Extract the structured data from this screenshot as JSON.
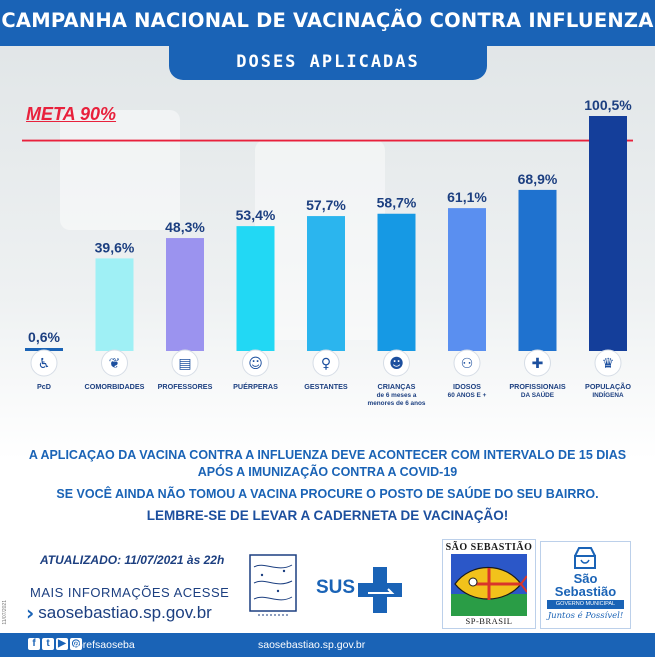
{
  "header": {
    "title": "CAMPANHA NACIONAL DE VACINAÇÃO CONTRA INFLUENZA",
    "subtitle": "DOSES APLICADAS"
  },
  "meta": {
    "label": "META 90%",
    "value": 90,
    "color": "#e8213c"
  },
  "chart_data": {
    "type": "bar",
    "categories": [
      {
        "name": "PcD",
        "lines": [
          "PcD"
        ],
        "icon": "wheelchair-icon",
        "color": "#1a63b6"
      },
      {
        "name": "COMORBIDADES",
        "lines": [
          "COMORBIDADES"
        ],
        "icon": "organs-icon",
        "color": "#9ff0f5"
      },
      {
        "name": "PROFESSORES",
        "lines": [
          "PROFESSORES"
        ],
        "icon": "books-icon",
        "color": "#9b93ef"
      },
      {
        "name": "PUÉRPERAS",
        "lines": [
          "PUÉRPERAS"
        ],
        "icon": "mother-baby-icon",
        "color": "#22d8f4"
      },
      {
        "name": "GESTANTES",
        "lines": [
          "GESTANTES"
        ],
        "icon": "pregnant-icon",
        "color": "#2bb5ee"
      },
      {
        "name": "CRIANÇAS de 6 meses a menores de 6 anos",
        "lines": [
          "CRIANÇAS",
          "de 6 meses a",
          "menores de 6 anos"
        ],
        "icon": "children-icon",
        "color": "#1699e4"
      },
      {
        "name": "IDOSOS 60 ANOS E +",
        "lines": [
          "IDOSOS",
          "60 ANOS E +"
        ],
        "icon": "elderly-icon",
        "color": "#5a8ff0"
      },
      {
        "name": "PROFISSIONAIS DA SAÚDE",
        "lines": [
          "PROFISSIONAIS",
          "DA SAÚDE"
        ],
        "icon": "doctor-icon",
        "color": "#1f72cf"
      },
      {
        "name": "POPULAÇÃO INDÍGENA",
        "lines": [
          "POPULAÇÃO",
          "INDÍGENA"
        ],
        "icon": "indigenous-icon",
        "color": "#143e9a"
      }
    ],
    "values": [
      0.6,
      39.6,
      48.3,
      53.4,
      57.7,
      58.7,
      61.1,
      68.9,
      100.5
    ],
    "value_labels": [
      "0,6%",
      "39,6%",
      "48,3%",
      "53,4%",
      "57,7%",
      "58,7%",
      "61,1%",
      "68,9%",
      "100,5%"
    ],
    "ylim": [
      0,
      100.5
    ],
    "unit": "%",
    "reference_line": {
      "label": "META 90%",
      "value": 90
    },
    "grid": false
  },
  "messages": {
    "line1a": "A APLICAÇAO  DA VACINA CONTRA A INFLUENZA DEVE ACONTECER COM INTERVALO DE 15 DIAS",
    "line1b": "APÓS A IMUNIZAÇÃO CONTRA A COVID-19",
    "line2": "SE VOCÊ AINDA NÃO TOMOU A VACINA PROCURE O POSTO DE SAÚDE DO SEU BAIRRO.",
    "line3": "LEMBRE-SE DE LEVAR A CADERNETA DE VACINAÇÃO!"
  },
  "footer": {
    "updated": "ATUALIZADO: 11/07/2021 às 22h",
    "more_info": "MAIS INFORMAÇÕES ACESSE",
    "site": "saosebastiao.sp.gov.br",
    "sus_label": "SUS",
    "social_handle": "/prefsaoseba",
    "bottom_site": "saosebastiao.sp.gov.br",
    "side_code": "11/07/2021",
    "coat_top": "SÃO SEBASTIÃO",
    "coat_bottom": "SP-BRASIL",
    "gov_name_1": "São",
    "gov_name_2": "Sebastião",
    "gov_strip": "GOVERNO MUNICIPAL",
    "gov_slogan": "Juntos é Possível!"
  },
  "colors": {
    "brand_blue": "#1a63b6",
    "text_dark_blue": "#1c3f80",
    "meta_red": "#e8213c"
  }
}
